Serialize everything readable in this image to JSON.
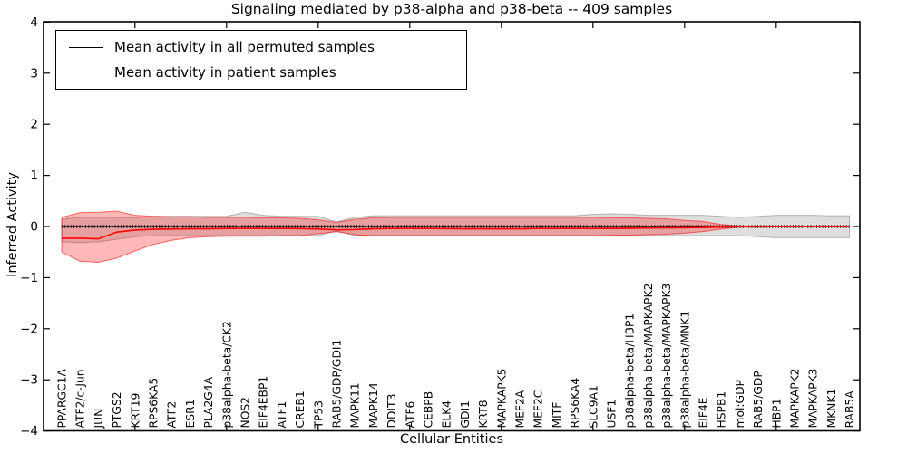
{
  "chart_data": {
    "type": "line",
    "title": "Signaling mediated by p38-alpha and p38-beta -- 409 samples",
    "xlabel": "Cellular Entities",
    "ylabel": "Inferred Activity",
    "ylim": [
      -4,
      4
    ],
    "yticks": [
      "4",
      "3",
      "2",
      "1",
      "0",
      "−1",
      "−2",
      "−3",
      "−4"
    ],
    "ytick_values": [
      4,
      3,
      2,
      1,
      0,
      -1,
      -2,
      -3,
      -4
    ],
    "x_tick_indices": [
      4,
      9,
      14,
      19,
      24,
      29,
      34,
      39
    ],
    "grid": false,
    "legend_position": "upper left",
    "background": "#ffffff",
    "categories": [
      "PPARGC1A",
      "ATF2/c-Jun",
      "JUN",
      "PTGS2",
      "KRT19",
      "RPS6KA5",
      "ATF2",
      "ESR1",
      "PLA2G4A",
      "p38alpha-beta/CK2",
      "NOS2",
      "EIF4EBP1",
      "ATF1",
      "CREB1",
      "TP53",
      "RAB5/GDP/GDI1",
      "MAPK11",
      "MAPK14",
      "DDIT3",
      "ATF6",
      "CEBPB",
      "ELK4",
      "GDI1",
      "KRT8",
      "MAPKAPK5",
      "MEF2A",
      "MEF2C",
      "MITF",
      "RPS6KA4",
      "SLC9A1",
      "USF1",
      "p38alpha-beta/HBP1",
      "p38alpha-beta/MAPKAPK2",
      "p38alpha-beta/MAPKAPK3",
      "p38alpha-beta/MNK1",
      "EIF4E",
      "HSPB1",
      "mol:GDP",
      "RAB5/GDP",
      "HBP1",
      "MAPKAPK2",
      "MAPKAPK3",
      "MKNK1",
      "RAB5A"
    ],
    "series": [
      {
        "name": "Mean activity in all permuted samples",
        "color": "#000000",
        "style": "solid-with-tick-dots",
        "values": [
          0,
          0,
          0,
          0,
          0,
          0,
          0,
          0,
          0,
          0,
          0,
          0,
          0,
          0,
          0,
          0,
          0,
          0,
          0,
          0,
          0,
          0,
          0,
          0,
          0,
          0,
          0,
          0,
          0,
          0,
          0,
          0,
          0,
          0,
          0,
          0,
          0,
          0,
          0,
          0,
          0,
          0,
          0,
          0
        ]
      },
      {
        "name": "Mean activity in patient samples",
        "color": "#ff0000",
        "style": "solid",
        "values": [
          -0.23,
          -0.23,
          -0.24,
          -0.11,
          -0.07,
          -0.055,
          -0.05,
          -0.045,
          -0.045,
          -0.04,
          -0.04,
          -0.04,
          -0.04,
          -0.042,
          -0.05,
          -0.065,
          -0.06,
          -0.045,
          -0.04,
          -0.04,
          -0.04,
          -0.042,
          -0.045,
          -0.045,
          -0.045,
          -0.045,
          -0.04,
          -0.04,
          -0.04,
          -0.04,
          -0.038,
          -0.035,
          -0.03,
          -0.028,
          -0.025,
          -0.02,
          -0.01,
          -0.005,
          -0.005,
          -0.003,
          -0.003,
          -0.003,
          -0.003,
          -0.003
        ]
      }
    ],
    "bands": [
      {
        "name": "permuted-samples-range",
        "fill_color": "rgba(0,0,0,0.13)",
        "edge_color": "rgba(0,0,0,0.25)",
        "start_index": 0,
        "upper": [
          0.14,
          0.18,
          0.18,
          0.18,
          0.17,
          0.2,
          0.2,
          0.2,
          0.2,
          0.2,
          0.28,
          0.22,
          0.2,
          0.2,
          0.2,
          0.09,
          0.18,
          0.21,
          0.21,
          0.21,
          0.21,
          0.21,
          0.21,
          0.21,
          0.21,
          0.21,
          0.21,
          0.21,
          0.21,
          0.24,
          0.25,
          0.24,
          0.22,
          0.22,
          0.22,
          0.22,
          0.2,
          0.18,
          0.2,
          0.22,
          0.22,
          0.22,
          0.21,
          0.21
        ],
        "lower": [
          -0.3,
          -0.32,
          -0.3,
          -0.25,
          -0.2,
          -0.18,
          -0.18,
          -0.18,
          -0.18,
          -0.18,
          -0.18,
          -0.18,
          -0.18,
          -0.18,
          -0.18,
          -0.09,
          -0.17,
          -0.18,
          -0.18,
          -0.18,
          -0.18,
          -0.18,
          -0.18,
          -0.18,
          -0.18,
          -0.18,
          -0.18,
          -0.18,
          -0.18,
          -0.18,
          -0.18,
          -0.18,
          -0.18,
          -0.18,
          -0.18,
          -0.18,
          -0.18,
          -0.18,
          -0.2,
          -0.22,
          -0.22,
          -0.22,
          -0.22,
          -0.22
        ]
      },
      {
        "name": "patient-samples-range",
        "fill_color": "rgba(255,0,0,0.28)",
        "edge_color": "rgba(255,0,0,0.55)",
        "start_index": 0,
        "upper": [
          0.18,
          0.27,
          0.28,
          0.3,
          0.22,
          0.2,
          0.19,
          0.19,
          0.18,
          0.18,
          0.18,
          0.17,
          0.17,
          0.16,
          0.13,
          0.08,
          0.14,
          0.17,
          0.18,
          0.18,
          0.18,
          0.18,
          0.18,
          0.18,
          0.18,
          0.18,
          0.18,
          0.18,
          0.18,
          0.18,
          0.17,
          0.17,
          0.16,
          0.15,
          0.12,
          0.1,
          0.04,
          0.01
        ],
        "lower": [
          -0.5,
          -0.68,
          -0.7,
          -0.62,
          -0.48,
          -0.35,
          -0.27,
          -0.22,
          -0.2,
          -0.19,
          -0.19,
          -0.19,
          -0.18,
          -0.18,
          -0.14,
          -0.1,
          -0.16,
          -0.18,
          -0.18,
          -0.18,
          -0.18,
          -0.18,
          -0.18,
          -0.18,
          -0.18,
          -0.18,
          -0.18,
          -0.18,
          -0.18,
          -0.18,
          -0.17,
          -0.17,
          -0.16,
          -0.15,
          -0.13,
          -0.1,
          -0.05,
          -0.01
        ]
      }
    ]
  }
}
